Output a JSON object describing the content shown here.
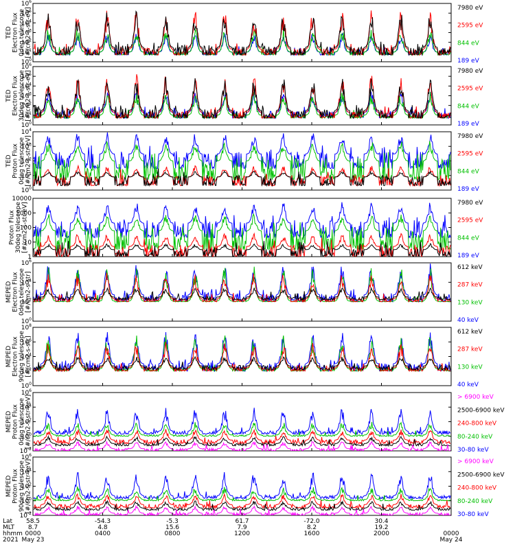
{
  "chart_data": [
    {
      "type": "line",
      "ylabel": [
        "TED",
        "Electron Flux",
        "0deg telescope",
        "[#/cm2-s-str-eV]"
      ],
      "ytick_labels": [
        "10^6",
        "10^5",
        "10^4",
        "10^3",
        "10^2",
        "10^1",
        "10^0"
      ],
      "ylim": [
        1,
        1000000
      ],
      "log": true,
      "series": [
        {
          "name": "7980 eV",
          "color": "#000000",
          "low": 5,
          "typ": 30,
          "spike": 200000
        },
        {
          "name": "2595 eV",
          "color": "#ff0000",
          "low": 5,
          "typ": 20,
          "spike": 300000
        },
        {
          "name": "844 eV",
          "color": "#00c000",
          "low": 5,
          "typ": 10,
          "spike": 3000
        },
        {
          "name": "189 eV",
          "color": "#0000ff",
          "low": 5,
          "typ": 10,
          "spike": 1000
        }
      ]
    },
    {
      "type": "line",
      "ylabel": [
        "TED",
        "Electron Flux",
        "30deg telescope",
        "[#/cm2-s-str-eV]"
      ],
      "ytick_labels": [
        "10^6",
        "10^5",
        "10^4",
        "10^3",
        "10^2",
        "10^1",
        "10^0"
      ],
      "ylim": [
        1,
        1000000
      ],
      "log": true,
      "series": [
        {
          "name": "7980 eV",
          "color": "#000000",
          "low": 5,
          "typ": 30,
          "spike": 100000
        },
        {
          "name": "2595 eV",
          "color": "#ff0000",
          "low": 5,
          "typ": 20,
          "spike": 200000
        },
        {
          "name": "844 eV",
          "color": "#00c000",
          "low": 5,
          "typ": 10,
          "spike": 3000
        },
        {
          "name": "189 eV",
          "color": "#0000ff",
          "low": 5,
          "typ": 20,
          "spike": 3000
        }
      ]
    },
    {
      "type": "line",
      "ylabel": [
        "TED",
        "Proton Flux",
        "0deg telescope",
        "[#/cm2-s-str-eV]"
      ],
      "ytick_labels": [
        "10^4",
        "10^3",
        "10^2",
        "10^1",
        "10^0"
      ],
      "ylim": [
        1,
        10000
      ],
      "log": true,
      "series": [
        {
          "name": "7980 eV",
          "color": "#000000",
          "low": 2,
          "typ": 8,
          "spike": 20
        },
        {
          "name": "2595 eV",
          "color": "#ff0000",
          "low": 2,
          "typ": 8,
          "spike": 50
        },
        {
          "name": "844 eV",
          "color": "#00c000",
          "low": 5,
          "typ": 100,
          "spike": 3000
        },
        {
          "name": "189 eV",
          "color": "#0000ff",
          "low": 30,
          "typ": 300,
          "spike": 10000
        }
      ]
    },
    {
      "type": "line",
      "ylabel": [
        "Proton Flux",
        "30deg telescope",
        "[#/cm2-s-str-eV]"
      ],
      "ytick_labels": [
        "10000",
        "1000",
        "100",
        "10",
        "1"
      ],
      "ylim": [
        1,
        10000
      ],
      "log": true,
      "series": [
        {
          "name": "7980 eV",
          "color": "#000000",
          "low": 1,
          "typ": 3,
          "spike": 8
        },
        {
          "name": "2595 eV",
          "color": "#ff0000",
          "low": 1,
          "typ": 5,
          "spike": 40
        },
        {
          "name": "844 eV",
          "color": "#00c000",
          "low": 3,
          "typ": 60,
          "spike": 1000
        },
        {
          "name": "189 eV",
          "color": "#0000ff",
          "low": 20,
          "typ": 200,
          "spike": 6000
        }
      ]
    },
    {
      "type": "line",
      "ylabel": [
        "MEPED",
        "Electron Flux",
        "0deg telescope",
        "[#/cm2-s-str]"
      ],
      "ytick_labels": [
        "10^6",
        "10^4",
        "10^2",
        "10^0"
      ],
      "ylim": [
        1,
        1000000
      ],
      "log": true,
      "series": [
        {
          "name": "612 keV",
          "color": "#000000",
          "low": 150,
          "typ": 300,
          "spike": 3000
        },
        {
          "name": "287 keV",
          "color": "#ff0000",
          "low": 100,
          "typ": 200,
          "spike": 100000
        },
        {
          "name": "130 keV",
          "color": "#00c000",
          "low": 100,
          "typ": 120,
          "spike": 500000
        },
        {
          "name": "40 keV",
          "color": "#0000ff",
          "low": 100,
          "typ": 500,
          "spike": 1000000
        }
      ]
    },
    {
      "type": "line",
      "ylabel": [
        "MEPED",
        "Electron Flux",
        "90deg telescope",
        "[#/cm2-s-str]"
      ],
      "ytick_labels": [
        "10^8",
        "10^6",
        "10^4",
        "10^2",
        "10^0"
      ],
      "ylim": [
        1,
        100000000
      ],
      "log": true,
      "series": [
        {
          "name": "612 keV",
          "color": "#000000",
          "low": 150,
          "typ": 500,
          "spike": 10000
        },
        {
          "name": "287 keV",
          "color": "#ff0000",
          "low": 100,
          "typ": 300,
          "spike": 1000000
        },
        {
          "name": "130 keV",
          "color": "#00c000",
          "low": 100,
          "typ": 200,
          "spike": 10000000
        },
        {
          "name": "40 keV",
          "color": "#0000ff",
          "low": 100,
          "typ": 1000,
          "spike": 30000000
        }
      ]
    },
    {
      "type": "line",
      "ylabel": [
        "MEPED",
        "Proton Flux",
        "0deg telescope",
        "[#/cm2-s-str-keV]"
      ],
      "ytick_labels": [
        "10^6",
        "10^4",
        "10^2",
        "10^0",
        "10^-2"
      ],
      "ylim": [
        0.01,
        1000000
      ],
      "log": true,
      "series": [
        {
          "name": "> 6900 keV",
          "color": "#ff00ff",
          "low": 0.01,
          "typ": 0.02,
          "spike": 0.2
        },
        {
          "name": "2500-6900 keV",
          "color": "#000000",
          "low": 0.05,
          "typ": 0.1,
          "spike": 1
        },
        {
          "name": "240-800 keV",
          "color": "#ff0000",
          "low": 0.1,
          "typ": 0.3,
          "spike": 10
        },
        {
          "name": "80-240 keV",
          "color": "#00c000",
          "low": 1,
          "typ": 1.5,
          "spike": 100
        },
        {
          "name": "30-80 keV",
          "color": "#0000ff",
          "low": 2,
          "typ": 5,
          "spike": 10000
        }
      ]
    },
    {
      "type": "line",
      "ylabel": [
        "MEPED",
        "Proton Flux",
        "90deg telescope",
        "[#/cm2-s-str-keV]"
      ],
      "ytick_labels": [
        "10^6",
        "10^4",
        "10^2",
        "10^0",
        "10^-2"
      ],
      "ylim": [
        0.01,
        1000000
      ],
      "log": true,
      "series": [
        {
          "name": "> 6900 keV",
          "color": "#ff00ff",
          "low": 0.01,
          "typ": 0.02,
          "spike": 0.2
        },
        {
          "name": "2500-6900 keV",
          "color": "#000000",
          "low": 0.05,
          "typ": 0.1,
          "spike": 1
        },
        {
          "name": "240-800 keV",
          "color": "#ff0000",
          "low": 0.1,
          "typ": 0.3,
          "spike": 10
        },
        {
          "name": "80-240 keV",
          "color": "#00c000",
          "low": 1,
          "typ": 1.5,
          "spike": 100
        },
        {
          "name": "30-80 keV",
          "color": "#0000ff",
          "low": 2,
          "typ": 5,
          "spike": 10000
        }
      ]
    }
  ],
  "x_axis": {
    "row_labels": [
      "Lat",
      "MLT",
      "hhmm",
      "2021"
    ],
    "ticks": [
      {
        "lat": "58.5",
        "mlt": "8.7",
        "hhmm": "0000",
        "date": "May 23"
      },
      {
        "lat": "-54.3",
        "mlt": "4.8",
        "hhmm": "0400",
        "date": ""
      },
      {
        "lat": "-5.3",
        "mlt": "15.6",
        "hhmm": "0800",
        "date": ""
      },
      {
        "lat": "61.7",
        "mlt": "7.9",
        "hhmm": "1200",
        "date": ""
      },
      {
        "lat": "-72.0",
        "mlt": "8.2",
        "hhmm": "1600",
        "date": ""
      },
      {
        "lat": "30.4",
        "mlt": "19.2",
        "hhmm": "2000",
        "date": ""
      },
      {
        "lat": "",
        "mlt": "",
        "hhmm": "0000",
        "date": "May 24"
      }
    ]
  }
}
